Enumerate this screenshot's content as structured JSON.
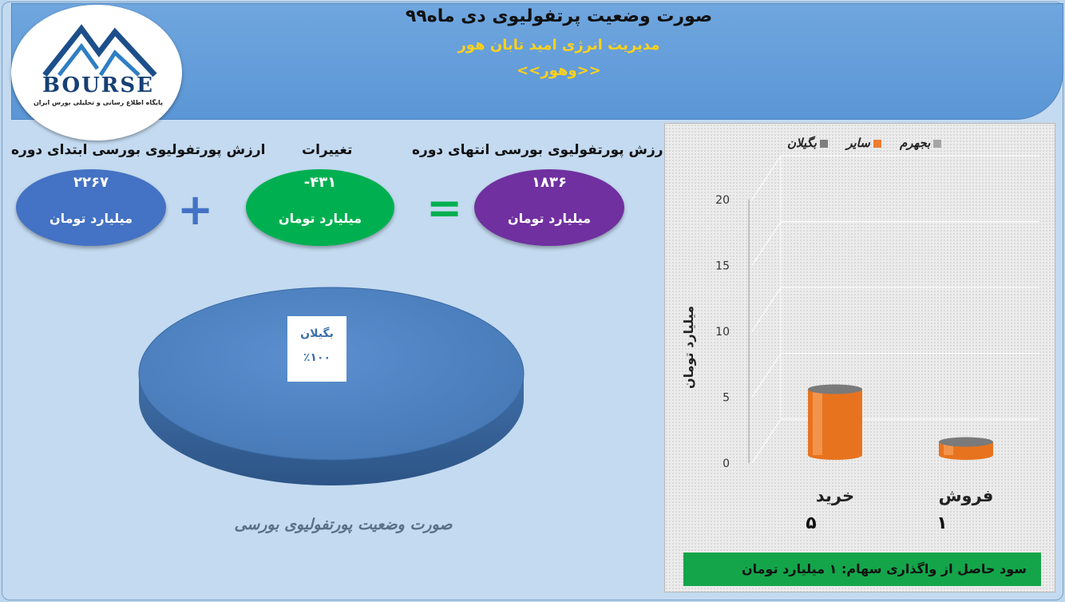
{
  "header": {
    "title": "صورت وضعیت پرتفولیوی دی ماه۹۹",
    "company": "مدیریت انرژی امید تابان هور",
    "symbol": "<<وهور>>"
  },
  "logo": {
    "name": "BOURSE",
    "tagline": "پایگاه اطلاع رسانی و تحلیلی بورس ایران"
  },
  "summary": {
    "start_label": "ارزش پورتفولیوی بورسی ابتدای دوره",
    "start_value": "۲۲۶۷",
    "change_label": "تغییرات",
    "change_value": "-۴۳۱",
    "end_label": "ارزش پورتفولیوی بورسی انتهای دوره",
    "end_value": "۱۸۳۶",
    "unit": "میلیارد تومان",
    "plus_symbol": "+",
    "equals_symbol": "=",
    "colors": {
      "start": "#4472c4",
      "change": "#00b050",
      "end": "#7030a0",
      "operator": "#4472c4",
      "equals": "#00b050"
    }
  },
  "pie_caption": "صورت وضعیت پورتفولیوی بورسی",
  "result_text": "سود حاصل از واگذاری سهام: ۱ میلیارد تومان",
  "chart_data": [
    {
      "type": "pie",
      "slices": [
        {
          "label": "بگیلان",
          "value": 100,
          "display": "٪۱۰۰"
        }
      ],
      "color": "#4f81bd"
    },
    {
      "type": "bar",
      "categories": [
        "خرید",
        "فروش"
      ],
      "category_values_text": [
        "۵",
        "۱"
      ],
      "series": [
        {
          "name": "بجهرم",
          "values": [
            0,
            0
          ],
          "color": "#a5a5a5"
        },
        {
          "name": "سایر",
          "values": [
            5,
            1
          ],
          "color": "#ed7d31"
        },
        {
          "name": "بگیلان",
          "values": [
            0,
            0
          ],
          "color": "#7f7f7f"
        }
      ],
      "ylabel": "میلیارد تومان",
      "ylim": [
        0,
        20
      ],
      "yticks": [
        0,
        5,
        10,
        15,
        20
      ],
      "legend": "top",
      "grid": true
    }
  ]
}
